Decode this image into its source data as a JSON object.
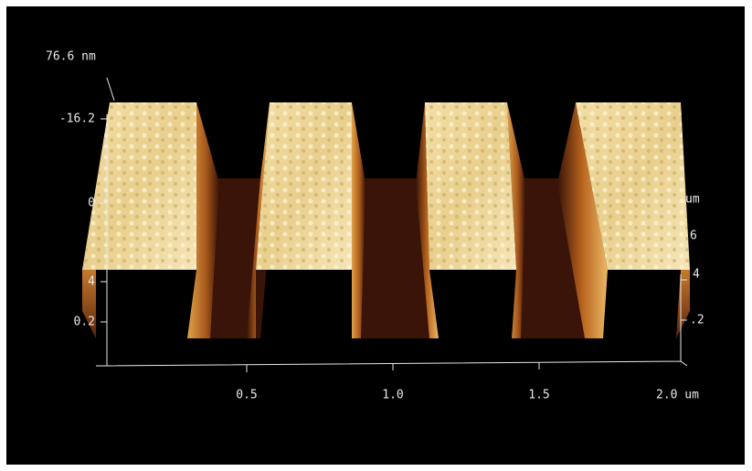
{
  "image": {
    "z_max_label": "76.6 nm",
    "left_axis_labels": [
      "-16.2",
      "0",
      "4",
      "0.2"
    ],
    "x_axis_labels": [
      "0.5",
      "1.0",
      "1.5",
      "2.0 um"
    ],
    "right_axis_labels": [
      "um",
      "6",
      "4",
      ".2"
    ]
  }
}
